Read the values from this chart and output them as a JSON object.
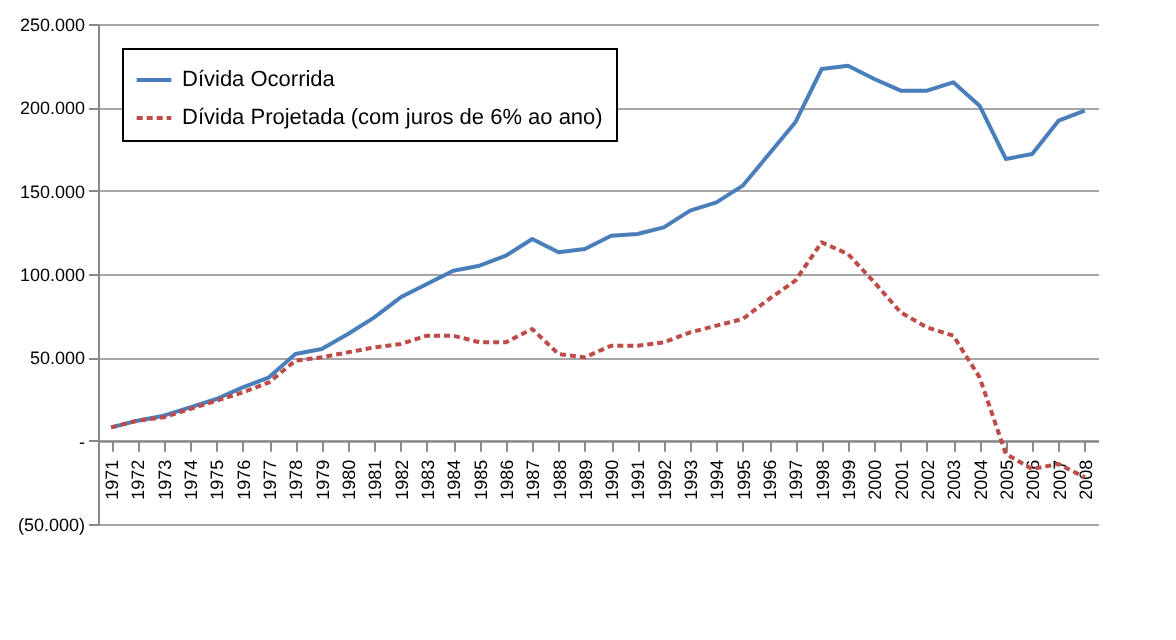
{
  "chart_data": {
    "type": "line",
    "categories": [
      "1971",
      "1972",
      "1973",
      "1974",
      "1975",
      "1976",
      "1977",
      "1978",
      "1979",
      "1980",
      "1981",
      "1982",
      "1983",
      "1984",
      "1985",
      "1986",
      "1987",
      "1988",
      "1989",
      "1990",
      "1991",
      "1992",
      "1993",
      "1994",
      "1995",
      "1996",
      "1997",
      "1998",
      "1999",
      "2000",
      "2001",
      "2002",
      "2003",
      "2004",
      "2005",
      "2006",
      "2007",
      "2008"
    ],
    "series": [
      {
        "name": "Dívida Ocorrida",
        "color": "#4a7ebb",
        "line_style": "solid",
        "values": [
          8000,
          12000,
          15000,
          20000,
          25000,
          32000,
          38000,
          52000,
          55000,
          64000,
          74000,
          86000,
          94000,
          102000,
          105000,
          111000,
          121000,
          113000,
          115000,
          123000,
          124000,
          128000,
          138000,
          143000,
          153000,
          172000,
          191000,
          223000,
          225000,
          217000,
          210000,
          210000,
          215000,
          201000,
          169000,
          172000,
          192000,
          198000
        ]
      },
      {
        "name": "Dívida Projetada (com juros de 6% ao ano)",
        "color": "#be4b48",
        "line_style": "dashed",
        "values": [
          8000,
          12000,
          14000,
          19000,
          24000,
          29000,
          35000,
          48000,
          50000,
          53000,
          56000,
          58000,
          63000,
          63000,
          59000,
          59000,
          67000,
          52000,
          50000,
          57000,
          57000,
          59000,
          65000,
          69000,
          73000,
          85000,
          96000,
          119000,
          112000,
          95000,
          77000,
          68000,
          63000,
          38000,
          -8000,
          -17000,
          -14000,
          -22000
        ]
      }
    ],
    "ylim": [
      -50000,
      250000
    ],
    "yticks": [
      {
        "value": -50000,
        "label": "(50.000)"
      },
      {
        "value": 0,
        "label": "-"
      },
      {
        "value": 50000,
        "label": "50.000"
      },
      {
        "value": 100000,
        "label": "100.000"
      },
      {
        "value": 150000,
        "label": "150.000"
      },
      {
        "value": 200000,
        "label": "200.000"
      },
      {
        "value": 250000,
        "label": "250.000"
      }
    ],
    "grid": "y",
    "legend": "top left",
    "marker": "none"
  }
}
